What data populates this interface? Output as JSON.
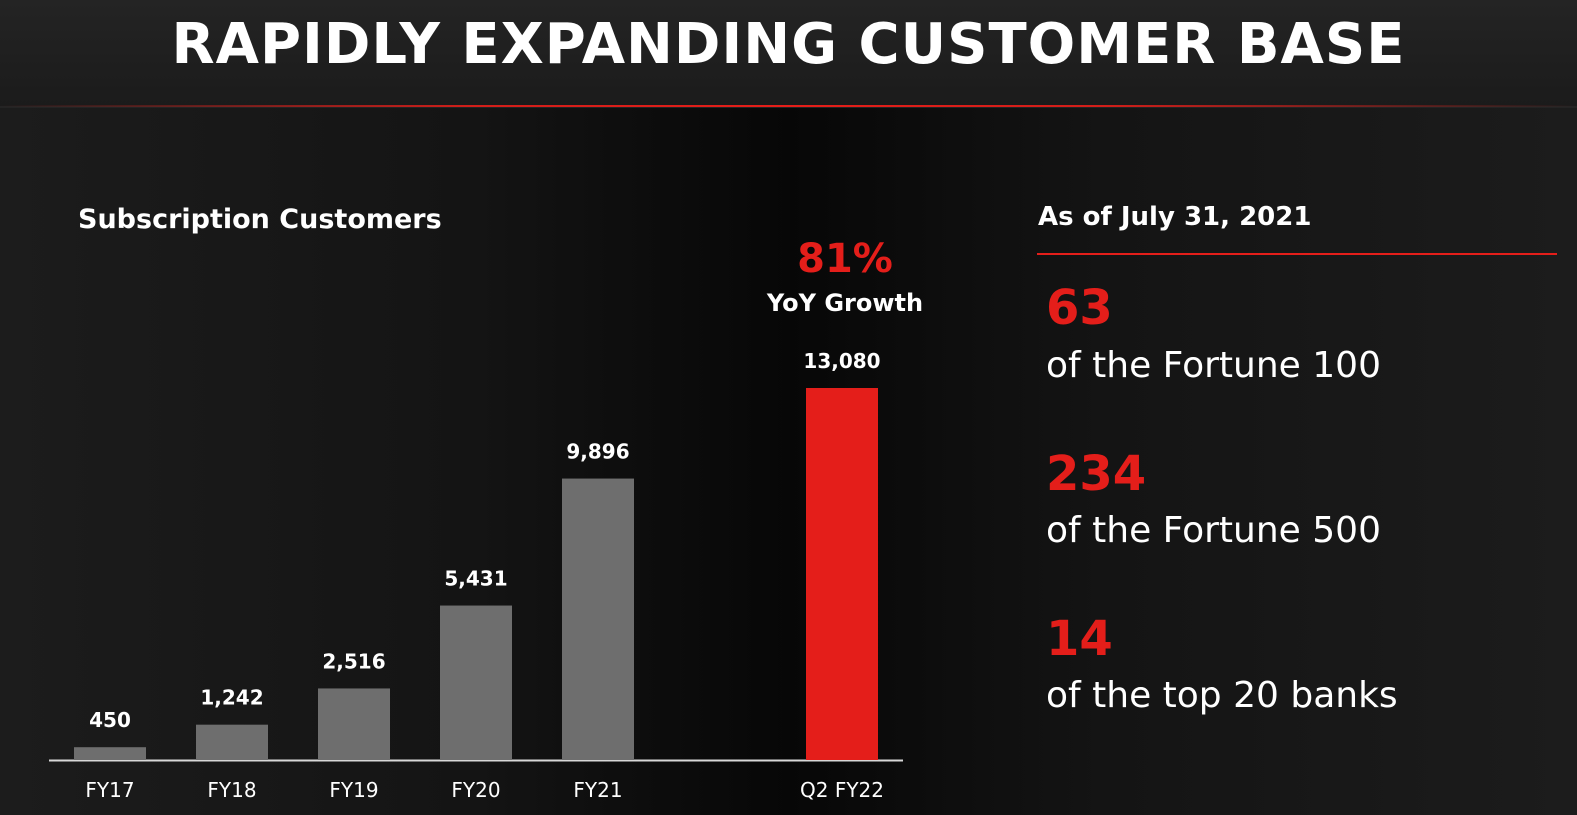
{
  "header": {
    "title": "RAPIDLY EXPANDING CUSTOMER BASE"
  },
  "chart_data": {
    "type": "bar",
    "title": "Subscription Customers",
    "categories": [
      "FY17",
      "FY18",
      "FY19",
      "FY20",
      "FY21",
      "Q2 FY22"
    ],
    "values": [
      450,
      1242,
      2516,
      5431,
      9896,
      13080
    ],
    "value_labels": [
      "450",
      "1,242",
      "2,516",
      "5,431",
      "9,896",
      "13,080"
    ],
    "highlight_index": 5,
    "colors": {
      "default": "#6e6e6e",
      "highlight": "#e41e1a"
    },
    "ylim": [
      0,
      13080
    ],
    "xlabel": "",
    "ylabel": "",
    "grid": false
  },
  "callout": {
    "value": "81%",
    "label": "YoY Growth"
  },
  "stats": {
    "as_of": "As of July 31, 2021",
    "items": [
      {
        "value": "63",
        "label": "of the Fortune 100"
      },
      {
        "value": "234",
        "label": "of the Fortune 500"
      },
      {
        "value": "14",
        "label": "of the top 20 banks"
      }
    ]
  },
  "colors": {
    "accent": "#e41e1a",
    "bar": "#6e6e6e",
    "text": "#ffffff"
  }
}
